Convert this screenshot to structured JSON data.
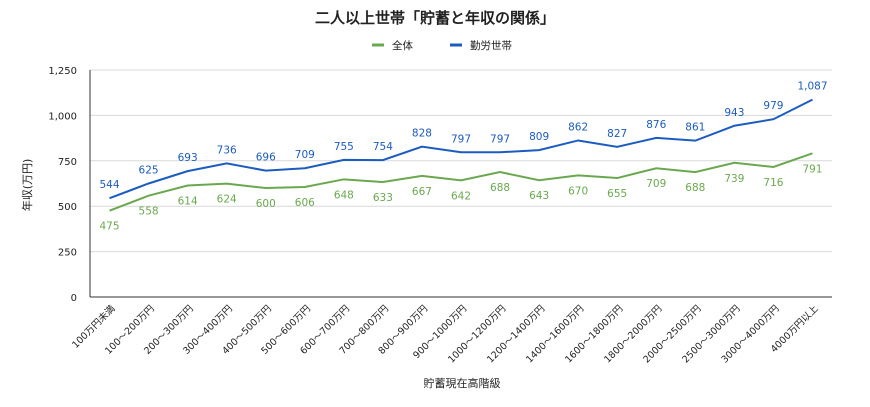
{
  "chart_data": {
    "type": "line",
    "title": "二人以上世帯「貯蓄と年収の関係」",
    "xlabel": "貯蓄現在高階級",
    "ylabel": "年収(万円)",
    "ylim": [
      0,
      1250
    ],
    "yticks": [
      0,
      250,
      500,
      750,
      1000,
      1250
    ],
    "ytick_labels": [
      "0",
      "250",
      "500",
      "750",
      "1,000",
      "1,250"
    ],
    "grid": "horizontal",
    "legend_position": "top",
    "categories": [
      "100万円未満",
      "100～200万円",
      "200～300万円",
      "300～400万円",
      "400～500万円",
      "500～600万円",
      "600～700万円",
      "700～800万円",
      "800～900万円",
      "900～1000万円",
      "1000～1200万円",
      "1200～1400万円",
      "1400～1600万円",
      "1600～1800万円",
      "1800～2000万円",
      "2000～2500万円",
      "2500～3000万円",
      "3000～4000万円",
      "4000万円以上"
    ],
    "series": [
      {
        "name": "全体",
        "color": "#6aa84f",
        "label_position": "below",
        "values": [
          475,
          558,
          614,
          624,
          600,
          606,
          648,
          633,
          667,
          642,
          688,
          643,
          670,
          655,
          709,
          688,
          739,
          716,
          791
        ],
        "labels": [
          "475",
          "558",
          "614",
          "624",
          "600",
          "606",
          "648",
          "633",
          "667",
          "642",
          "688",
          "643",
          "670",
          "655",
          "709",
          "688",
          "739",
          "716",
          "791"
        ]
      },
      {
        "name": "勤労世帯",
        "color": "#1c5bbf",
        "label_position": "above",
        "values": [
          544,
          625,
          693,
          736,
          696,
          709,
          755,
          754,
          828,
          797,
          797,
          809,
          862,
          827,
          876,
          861,
          943,
          979,
          1087
        ],
        "labels": [
          "544",
          "625",
          "693",
          "736",
          "696",
          "709",
          "755",
          "754",
          "828",
          "797",
          "797",
          "809",
          "862",
          "827",
          "876",
          "861",
          "943",
          "979",
          "1,087"
        ]
      }
    ]
  }
}
